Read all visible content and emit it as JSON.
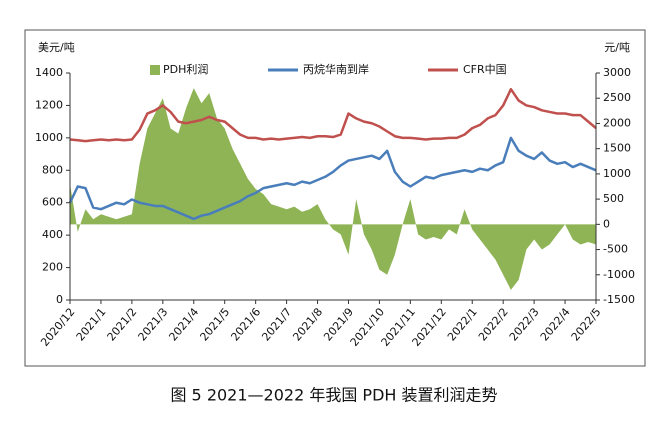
{
  "chart_data": {
    "type": "combo",
    "caption": "图 5  2021—2022 年我国 PDH 装置利润走势",
    "ylabel": "美元/吨",
    "y2label": "元/吨",
    "categories": [
      "2020/12",
      null,
      null,
      null,
      "2021/1",
      null,
      null,
      null,
      "2021/2",
      null,
      null,
      null,
      "2021/3",
      null,
      null,
      null,
      "2021/4",
      null,
      null,
      null,
      "2021/5",
      null,
      null,
      null,
      "2021/6",
      null,
      null,
      null,
      "2021/7",
      null,
      null,
      null,
      "2021/8",
      null,
      null,
      null,
      "2021/9",
      null,
      null,
      null,
      "2021/10",
      null,
      null,
      null,
      "2021/11",
      null,
      null,
      null,
      "2021/12",
      null,
      null,
      null,
      "2022/1",
      null,
      null,
      null,
      "2022/2",
      null,
      null,
      null,
      "2022/3",
      null,
      null,
      null,
      "2022/4",
      null,
      null,
      null,
      "2022/5"
    ],
    "ylim": [
      0,
      1400
    ],
    "yticks": [
      0,
      200,
      400,
      600,
      800,
      1000,
      1200,
      1400
    ],
    "y2lim": [
      -1500,
      3000
    ],
    "y2ticks": [
      -1500,
      -1000,
      -500,
      0,
      500,
      1000,
      1500,
      2000,
      2500,
      3000
    ],
    "legend": "top",
    "series": [
      {
        "name": "PDH利润",
        "type": "area",
        "axis": "y2",
        "color": "#8fb456",
        "values": [
          800,
          -150,
          300,
          100,
          200,
          150,
          100,
          150,
          200,
          1200,
          1900,
          2200,
          2500,
          1900,
          1800,
          2300,
          2700,
          2400,
          2600,
          2100,
          1900,
          1500,
          1200,
          900,
          700,
          600,
          400,
          350,
          300,
          350,
          250,
          300,
          400,
          100,
          -100,
          -200,
          -600,
          500,
          -200,
          -500,
          -900,
          -1000,
          -600,
          0,
          500,
          -200,
          -300,
          -250,
          -300,
          -100,
          -200,
          300,
          -100,
          -300,
          -500,
          -700,
          -1000,
          -1300,
          -1100,
          -500,
          -300,
          -500,
          -400,
          -200,
          0,
          -300,
          -400,
          -350,
          -400
        ]
      },
      {
        "name": "丙烷华南到岸",
        "type": "line",
        "color": "#4a7ebb",
        "values": [
          600,
          700,
          690,
          570,
          560,
          580,
          600,
          590,
          620,
          600,
          590,
          580,
          580,
          560,
          540,
          520,
          500,
          520,
          530,
          550,
          570,
          590,
          610,
          640,
          660,
          690,
          700,
          710,
          720,
          710,
          730,
          720,
          740,
          760,
          790,
          830,
          860,
          870,
          880,
          890,
          870,
          920,
          790,
          730,
          700,
          730,
          760,
          750,
          770,
          780,
          790,
          800,
          790,
          810,
          800,
          830,
          850,
          1000,
          920,
          890,
          870,
          910,
          860,
          840,
          850,
          820,
          840,
          820,
          800
        ]
      },
      {
        "name": "CFR中国",
        "type": "line",
        "color": "#c0504d",
        "values": [
          990,
          985,
          980,
          985,
          990,
          985,
          990,
          985,
          990,
          1050,
          1150,
          1170,
          1200,
          1160,
          1100,
          1090,
          1100,
          1110,
          1130,
          1110,
          1100,
          1060,
          1020,
          1000,
          1000,
          990,
          995,
          990,
          995,
          1000,
          1005,
          1000,
          1010,
          1010,
          1005,
          1020,
          1150,
          1120,
          1100,
          1090,
          1070,
          1040,
          1010,
          1000,
          1000,
          995,
          990,
          995,
          995,
          1000,
          1000,
          1020,
          1060,
          1080,
          1120,
          1140,
          1200,
          1300,
          1230,
          1200,
          1190,
          1170,
          1160,
          1150,
          1150,
          1140,
          1140,
          1100,
          1060
        ]
      }
    ]
  }
}
